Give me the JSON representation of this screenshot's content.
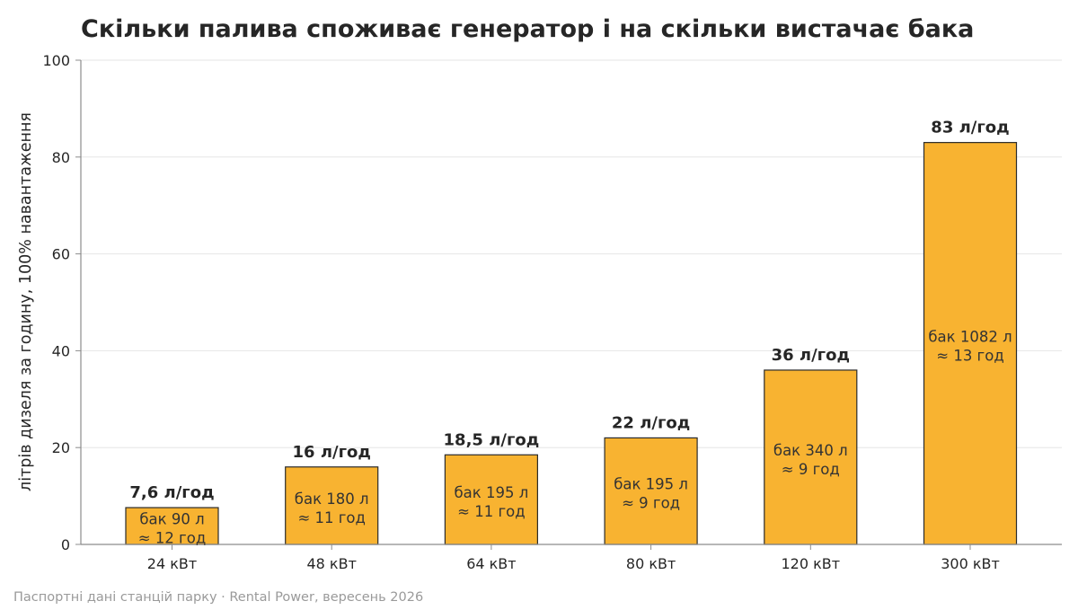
{
  "chart_data": {
    "type": "bar",
    "title": "Скільки палива споживає генератор і на скільки вистачає бака",
    "ylabel": "літрів дизеля за годину, 100% навантаження",
    "xlabel": "",
    "ylim": [
      0,
      100
    ],
    "yticks": [
      0,
      20,
      40,
      60,
      80,
      100
    ],
    "grid": true,
    "categories": [
      "24 кВт",
      "48 кВт",
      "64 кВт",
      "80 кВт",
      "120 кВт",
      "300 кВт"
    ],
    "values": [
      7.6,
      16,
      18.5,
      22,
      36,
      83
    ],
    "value_labels": [
      "7,6 л/год",
      "16 л/год",
      "18,5 л/год",
      "22 л/год",
      "36 л/год",
      "83 л/год"
    ],
    "tank_labels": [
      "бак 90 л",
      "бак 180 л",
      "бак 195 л",
      "бак 195 л",
      "бак 340 л",
      "бак 1082 л"
    ],
    "runtime_labels": [
      "≈ 12 год",
      "≈ 11 год",
      "≈ 11 год",
      "≈ 9 год",
      "≈ 9 год",
      "≈ 13 год"
    ],
    "source": "Паспортні дані станцій парку · Rental Power, вересень 2026",
    "colors": {
      "bar_fill": "#F8B331",
      "bar_stroke": "#2b2b2b",
      "grid": "#e6e6e6",
      "axis": "#8c8c8c",
      "text": "#262626",
      "source": "#9a9a9a"
    }
  }
}
